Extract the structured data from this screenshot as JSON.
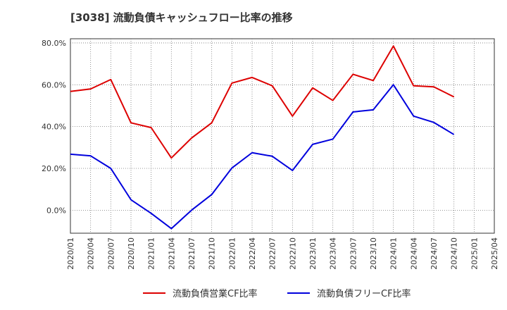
{
  "chart_data": {
    "type": "line",
    "title": "[3038]  流動負債キャッシュフロー比率の推移",
    "xlabel": "",
    "ylabel": "",
    "ylim": [
      -11,
      82
    ],
    "yticks": [
      0,
      20,
      40,
      60,
      80
    ],
    "ytick_labels": [
      "0.0%",
      "20.0%",
      "40.0%",
      "60.0%",
      "80.0%"
    ],
    "x": [
      "2020/01",
      "2020/04",
      "2020/07",
      "2020/10",
      "2021/01",
      "2021/04",
      "2021/07",
      "2021/10",
      "2022/01",
      "2022/04",
      "2022/07",
      "2022/10",
      "2023/01",
      "2023/04",
      "2023/07",
      "2023/10",
      "2024/01",
      "2024/04",
      "2024/07",
      "2024/10",
      "2025/01",
      "2025/04"
    ],
    "grid": true,
    "legend_position": "bottom",
    "series": [
      {
        "name": "流動負債営業CF比率",
        "color": "#dd0000",
        "values": [
          56.8,
          58.0,
          62.5,
          41.8,
          39.5,
          25.0,
          34.5,
          41.8,
          60.8,
          63.5,
          59.5,
          45.0,
          58.5,
          52.5,
          65.0,
          62.0,
          78.5,
          59.5,
          59.0,
          54.2,
          null,
          null
        ]
      },
      {
        "name": "流動負債フリーCF比率",
        "color": "#0000dd",
        "values": [
          26.8,
          26.0,
          20.0,
          5.0,
          -1.5,
          -8.8,
          0.0,
          7.5,
          20.2,
          27.5,
          25.8,
          19.0,
          31.5,
          34.0,
          47.0,
          48.0,
          60.0,
          45.0,
          42.0,
          36.2,
          null,
          null
        ]
      }
    ]
  }
}
